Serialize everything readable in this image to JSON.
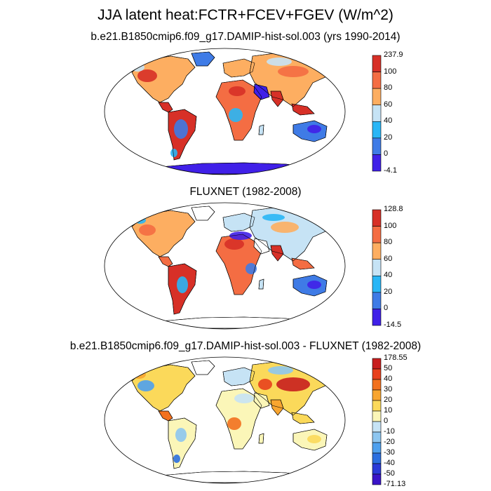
{
  "figure": {
    "title": "JJA latent heat:FCTR+FCEV+FGEV (W/m^2)"
  },
  "panels": [
    {
      "id": "model",
      "subtitle": "b.e21.B1850cmip6.f09_g17.DAMIP-hist-sol.003 (yrs 1990-2014)",
      "colorbar": {
        "labels": [
          "237.9",
          "100",
          "80",
          "60",
          "40",
          "20",
          "0",
          "-4.1"
        ],
        "colors": [
          "#d73027",
          "#f46d43",
          "#fdae61",
          "#c6e3f5",
          "#29b6f6",
          "#3f7be6",
          "#4020e8"
        ]
      }
    },
    {
      "id": "obs",
      "subtitle": "FLUXNET (1982-2008)",
      "colorbar": {
        "labels": [
          "128.8",
          "100",
          "80",
          "60",
          "40",
          "20",
          "0",
          "-14.5"
        ],
        "colors": [
          "#d73027",
          "#f46d43",
          "#fdae61",
          "#c6e3f5",
          "#29b6f6",
          "#3f7be6",
          "#4020e8"
        ]
      }
    },
    {
      "id": "diff",
      "subtitle": "b.e21.B1850cmip6.f09_g17.DAMIP-hist-sol.003 - FLUXNET (1982-2008)",
      "colorbar": {
        "labels": [
          "178.55",
          "50",
          "40",
          "30",
          "20",
          "10",
          "0",
          "-10",
          "-20",
          "-30",
          "-40",
          "-50",
          "-71.13"
        ],
        "colors": [
          "#c81e1e",
          "#e8401c",
          "#f2711f",
          "#f8a530",
          "#fbd95a",
          "#fbf6b8",
          "#c6e3f5",
          "#8dc6f0",
          "#4ea0ee",
          "#2b6fe0",
          "#2a3ad8",
          "#3a14c8"
        ]
      }
    }
  ]
}
